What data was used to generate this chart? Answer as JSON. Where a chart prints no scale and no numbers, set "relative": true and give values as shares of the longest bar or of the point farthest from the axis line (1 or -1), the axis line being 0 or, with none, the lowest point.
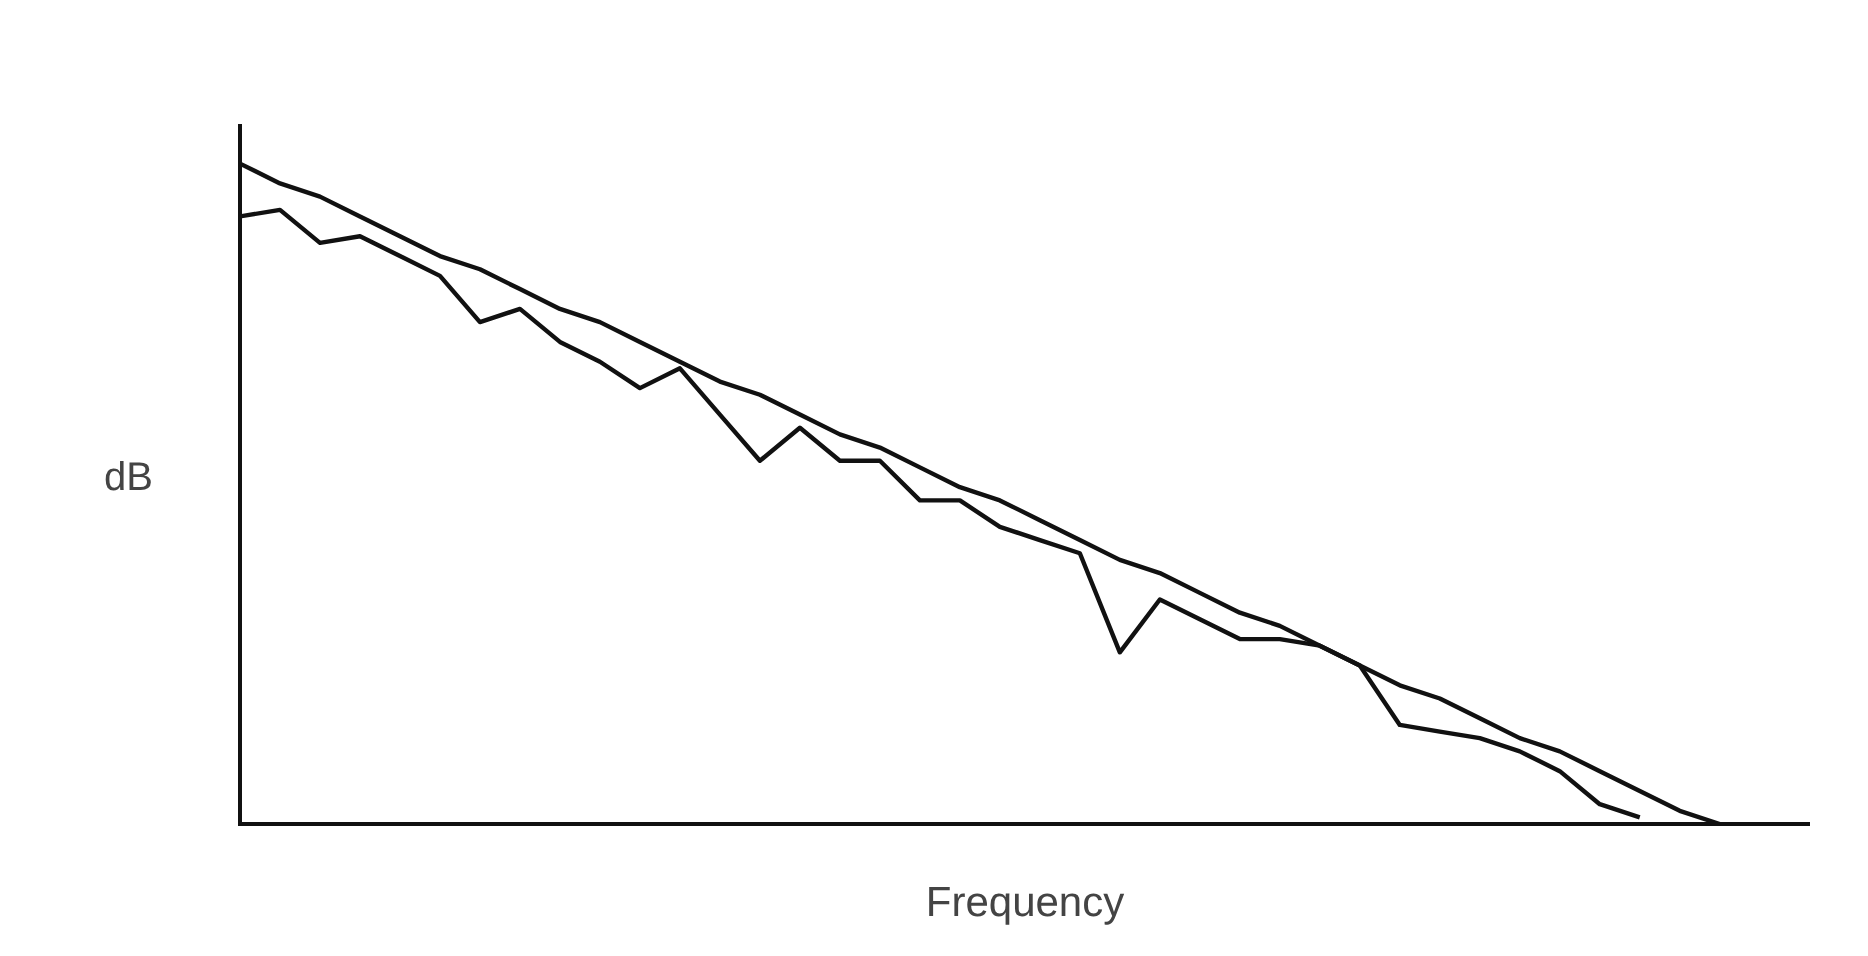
{
  "chart_data": {
    "type": "line",
    "relative": true,
    "xlabel": "Frequency",
    "ylabel": "dB",
    "legend": false,
    "marker": "none",
    "line_style": "solid",
    "categories": [
      null,
      null,
      null,
      null,
      null,
      null,
      null,
      null,
      null,
      null,
      null,
      null,
      null,
      null,
      null,
      null,
      null,
      null,
      null,
      null,
      null,
      null,
      null,
      null,
      null,
      null,
      null,
      null,
      null,
      null,
      null,
      null,
      null,
      null,
      null,
      null,
      null,
      null
    ],
    "series": [
      {
        "color": "#111111",
        "values": [
          0.92,
          0.93,
          0.88,
          0.89,
          0.86,
          0.83,
          0.76,
          0.78,
          0.73,
          0.7,
          0.66,
          0.69,
          0.62,
          0.55,
          0.6,
          0.55,
          0.55,
          0.49,
          0.49,
          0.45,
          0.43,
          0.41,
          0.26,
          0.34,
          0.31,
          0.28,
          0.28,
          0.27,
          0.24,
          0.15,
          0.14,
          0.13,
          0.11,
          0.08,
          0.03,
          0.01,
          null,
          null
        ]
      },
      {
        "color": "#111111",
        "values": [
          1,
          0.97,
          0.95,
          0.92,
          0.89,
          0.86,
          0.84,
          0.81,
          0.78,
          0.76,
          0.73,
          0.7,
          0.67,
          0.65,
          0.62,
          0.59,
          0.57,
          0.54,
          0.51,
          0.49,
          0.46,
          0.43,
          0.4,
          0.38,
          0.35,
          0.32,
          0.3,
          0.27,
          0.24,
          0.21,
          0.19,
          0.16,
          0.13,
          0.11,
          0.08,
          0.05,
          0.02,
          0
        ]
      }
    ]
  }
}
